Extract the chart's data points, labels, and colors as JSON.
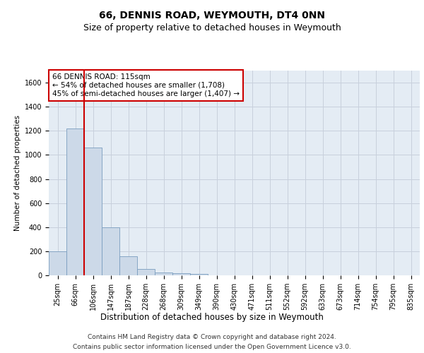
{
  "title": "66, DENNIS ROAD, WEYMOUTH, DT4 0NN",
  "subtitle": "Size of property relative to detached houses in Weymouth",
  "xlabel": "Distribution of detached houses by size in Weymouth",
  "ylabel": "Number of detached properties",
  "categories": [
    "25sqm",
    "66sqm",
    "106sqm",
    "147sqm",
    "187sqm",
    "228sqm",
    "268sqm",
    "309sqm",
    "349sqm",
    "390sqm",
    "430sqm",
    "471sqm",
    "511sqm",
    "552sqm",
    "592sqm",
    "633sqm",
    "673sqm",
    "714sqm",
    "754sqm",
    "795sqm",
    "835sqm"
  ],
  "values": [
    200,
    1220,
    1060,
    400,
    160,
    55,
    25,
    15,
    10,
    0,
    0,
    0,
    0,
    0,
    0,
    0,
    0,
    0,
    0,
    0,
    0
  ],
  "bar_color": "#ccd9e8",
  "bar_edge_color": "#7a9dbf",
  "red_line_bin": 2,
  "annotation_line1": "66 DENNIS ROAD: 115sqm",
  "annotation_line2": "← 54% of detached houses are smaller (1,708)",
  "annotation_line3": "45% of semi-detached houses are larger (1,407) →",
  "annotation_box_facecolor": "#ffffff",
  "annotation_box_edgecolor": "#cc0000",
  "red_line_color": "#cc0000",
  "ylim": [
    0,
    1700
  ],
  "yticks": [
    0,
    200,
    400,
    600,
    800,
    1000,
    1200,
    1400,
    1600
  ],
  "grid_color": "#c8d0dc",
  "plot_bg_color": "#e4ecf4",
  "footer_line1": "Contains HM Land Registry data © Crown copyright and database right 2024.",
  "footer_line2": "Contains public sector information licensed under the Open Government Licence v3.0.",
  "title_fontsize": 10,
  "subtitle_fontsize": 9,
  "xlabel_fontsize": 8.5,
  "ylabel_fontsize": 7.5,
  "tick_fontsize": 7,
  "annotation_fontsize": 7.5,
  "footer_fontsize": 6.5
}
